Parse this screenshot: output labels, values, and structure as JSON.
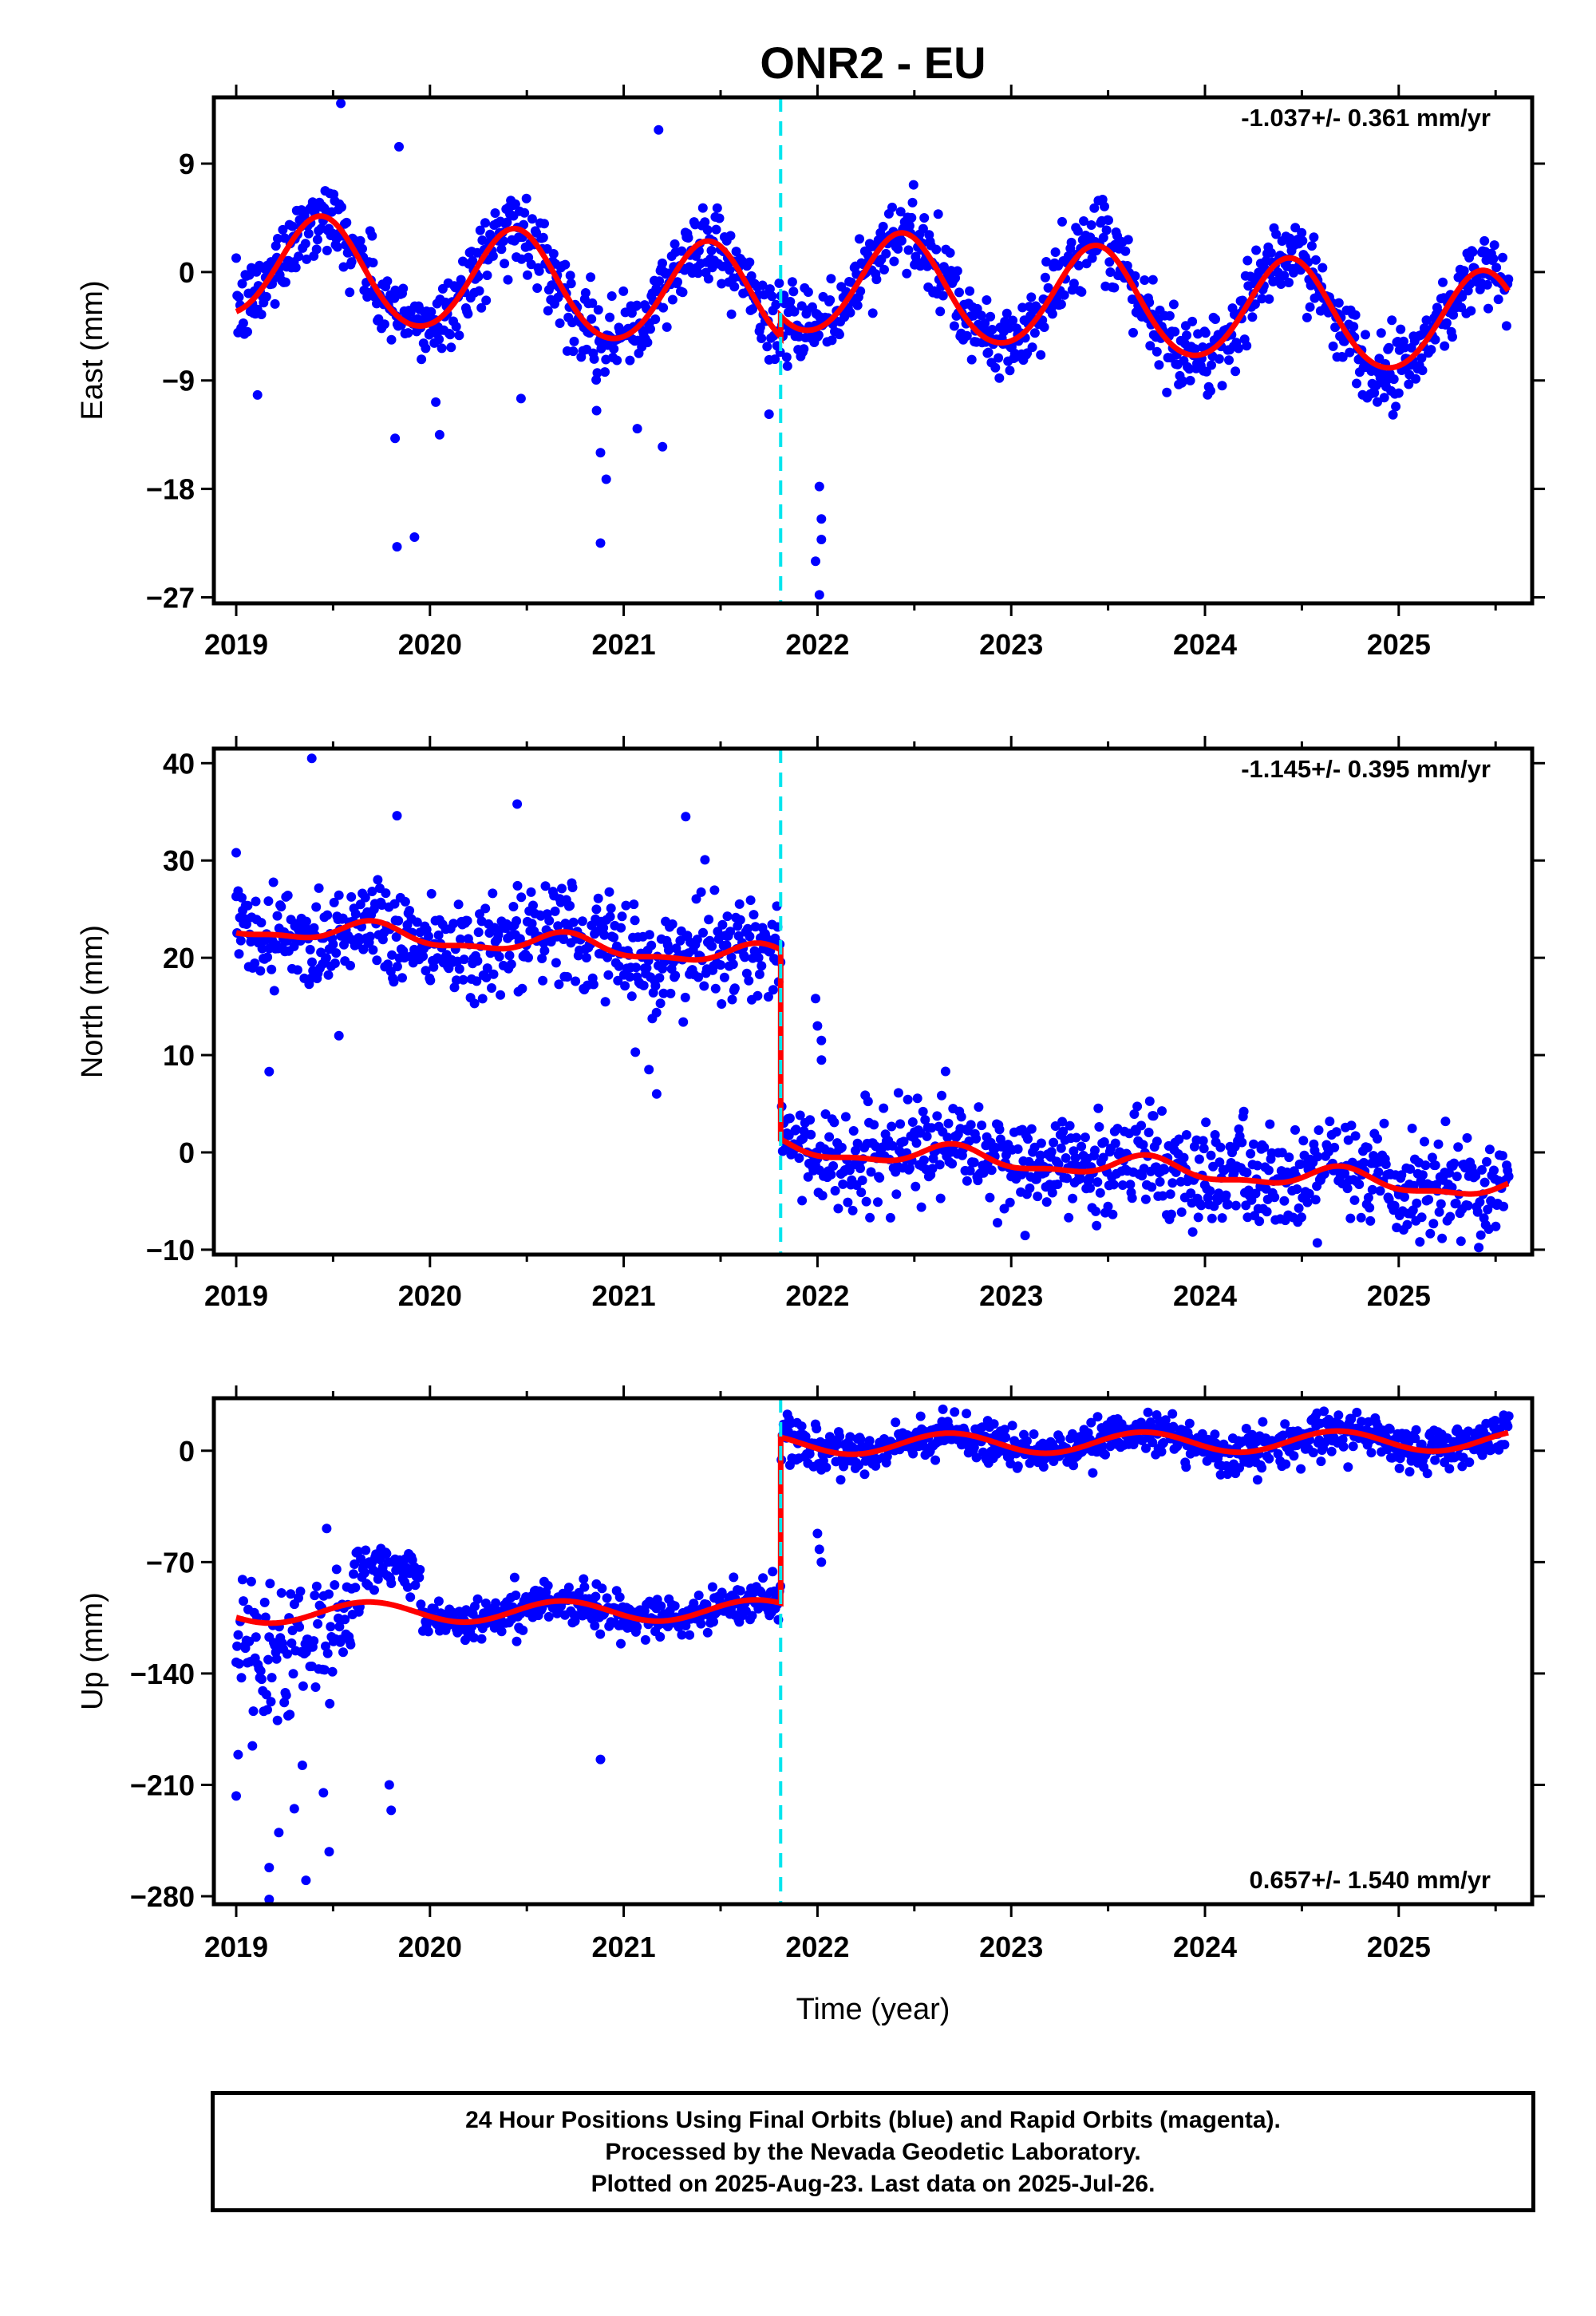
{
  "title": "ONR2 - EU",
  "xlabel": "Time (year)",
  "footer": {
    "line1": "24 Hour Positions Using Final Orbits (blue) and Rapid Orbits (magenta).",
    "line2": "Processed by the Nevada Geodetic Laboratory.",
    "line3": "Plotted on 2025-Aug-23. Last data on 2025-Jul-26."
  },
  "colors": {
    "data": "#0000ff",
    "model": "#ff0000",
    "event": "#00e5ee",
    "frame": "#000000"
  },
  "chart_data": [
    {
      "type": "scatter",
      "ylabel": "East (mm)",
      "rate_text": "-1.037+/- 0.361 mm/yr",
      "rate_position": "top-right",
      "x_ticks": [
        "2019",
        "2020",
        "2021",
        "2022",
        "2023",
        "2024",
        "2025"
      ],
      "y_ticks": [
        "9",
        "0",
        "−9",
        "−18",
        "−27"
      ],
      "x_range": [
        2018.88,
        2025.66
      ],
      "y_range": [
        -27.5,
        14.5
      ],
      "event_line_x": 2021.81,
      "model": {
        "offset_before": 0.5,
        "offset_after": -0.7,
        "rate": -1.037,
        "annual_amplitude": 4.3,
        "annual_phase_peak": 0.44,
        "semiannual_amplitude": 0.3,
        "step_at": 2021.81
      },
      "scatter_noise": 1.6,
      "outliers": [
        [
          2019.83,
          -22.8
        ],
        [
          2019.92,
          -22.0
        ],
        [
          2020.03,
          -10.8
        ],
        [
          2019.82,
          -13.8
        ],
        [
          2020.05,
          -13.5
        ],
        [
          2020.88,
          -22.5
        ],
        [
          2020.91,
          -17.2
        ],
        [
          2020.88,
          -15.0
        ],
        [
          2020.86,
          -11.5
        ],
        [
          2021.07,
          -13.0
        ],
        [
          2022.01,
          -17.8
        ],
        [
          2022.02,
          -20.5
        ],
        [
          2022.02,
          -22.2
        ],
        [
          2021.99,
          -24.0
        ],
        [
          2022.01,
          -26.8
        ],
        [
          2019.54,
          14.0
        ],
        [
          2021.18,
          11.8
        ],
        [
          2019.84,
          10.4
        ],
        [
          2021.2,
          -14.5
        ],
        [
          2021.75,
          -11.8
        ],
        [
          2019.11,
          -10.2
        ],
        [
          2020.47,
          -10.5
        ]
      ]
    },
    {
      "type": "scatter",
      "ylabel": "North (mm)",
      "rate_text": "-1.145+/- 0.395 mm/yr",
      "rate_position": "top-right",
      "x_ticks": [
        "2019",
        "2020",
        "2021",
        "2022",
        "2023",
        "2024",
        "2025"
      ],
      "y_ticks": [
        "40",
        "30",
        "20",
        "10",
        "0",
        "−10"
      ],
      "x_range": [
        2018.88,
        2025.66
      ],
      "y_range": [
        -10.5,
        41.5
      ],
      "event_line_x": 2021.81,
      "model": {
        "offset_before": 23.2,
        "offset_after": 0.5,
        "rate": -1.145,
        "annual_amplitude": 1.0,
        "annual_phase_peak": 0.7,
        "semiannual_amplitude": 0.4,
        "step_at": 2021.81
      },
      "scatter_noise": 2.6,
      "outliers": [
        [
          2019.39,
          40.5
        ],
        [
          2019.83,
          34.6
        ],
        [
          2020.45,
          35.8
        ],
        [
          2021.32,
          34.5
        ],
        [
          2019.0,
          30.8
        ],
        [
          2019.17,
          8.3
        ],
        [
          2021.17,
          6.0
        ],
        [
          2021.06,
          10.3
        ],
        [
          2019.53,
          12.0
        ],
        [
          2021.99,
          15.8
        ],
        [
          2022.0,
          13.0
        ],
        [
          2024.2,
          4.2
        ],
        [
          2024.58,
          -9.3
        ],
        [
          2021.13,
          8.5
        ],
        [
          2022.02,
          11.5
        ]
      ]
    },
    {
      "type": "scatter",
      "ylabel": "Up (mm)",
      "rate_text": "0.657+/- 1.540 mm/yr",
      "rate_position": "bottom-right",
      "x_ticks": [
        "2019",
        "2020",
        "2021",
        "2022",
        "2023",
        "2024",
        "2025"
      ],
      "y_ticks": [
        "0",
        "−70",
        "−140",
        "−210",
        "−280"
      ],
      "x_range": [
        2018.88,
        2025.66
      ],
      "y_range": [
        -285,
        33
      ],
      "event_line_x": 2021.81,
      "model": {
        "offset_before": -102,
        "offset_after": 4,
        "rate": 0.657,
        "annual_amplitude": 6.5,
        "annual_phase_peak": 0.68,
        "semiannual_amplitude": 0.0,
        "step_at": 2021.81
      },
      "scatter_noise": 6.5,
      "outliers": [
        [
          2019.17,
          -282
        ],
        [
          2019.17,
          -262
        ],
        [
          2019.36,
          -270
        ],
        [
          2019.48,
          -252
        ],
        [
          2019.8,
          -226
        ],
        [
          2019.0,
          -217
        ],
        [
          2019.01,
          -191
        ],
        [
          2020.88,
          -194
        ],
        [
          2022.01,
          -62
        ],
        [
          2022.02,
          -70
        ],
        [
          2022.0,
          -52
        ],
        [
          2019.79,
          -210
        ],
        [
          2019.22,
          -240
        ],
        [
          2019.3,
          -225
        ],
        [
          2019.45,
          -215
        ]
      ]
    }
  ]
}
